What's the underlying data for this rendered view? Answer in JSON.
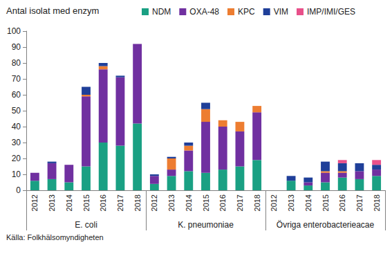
{
  "chart_data": {
    "type": "bar",
    "y_label": "Antal isolat med enzym",
    "source": "Källa: Folkhälsomyndigheten",
    "stacked": true,
    "legend": "top",
    "grid": false,
    "groups": [
      "E. coli",
      "K. pneumoniae",
      "Övriga enterobacterieacae"
    ],
    "categories": [
      "2012",
      "2013",
      "2014",
      "2015",
      "2016",
      "2017",
      "2018",
      "2012",
      "2013",
      "2014",
      "2015",
      "2016",
      "2017",
      "2018",
      "2012",
      "2013",
      "2014",
      "2015",
      "2016",
      "2017",
      "2018"
    ],
    "series": [
      {
        "name": "NDM",
        "color": "#1aa083",
        "values": [
          6,
          7,
          5,
          15,
          30,
          28,
          42,
          4,
          9,
          12,
          11,
          13,
          15,
          19,
          0,
          6,
          3,
          5,
          8,
          7,
          9
        ]
      },
      {
        "name": "OXA-48",
        "color": "#7030a0",
        "values": [
          5,
          10,
          11,
          44,
          46,
          43,
          50,
          5,
          4,
          13,
          32,
          27,
          22,
          30,
          0,
          0,
          2,
          6,
          3,
          5,
          4
        ]
      },
      {
        "name": "KPC",
        "color": "#ed7d31",
        "values": [
          0,
          0,
          0,
          1,
          2,
          0,
          0,
          0,
          7,
          3,
          8,
          4,
          6,
          4,
          0,
          0,
          0,
          1,
          1,
          0,
          0
        ]
      },
      {
        "name": "VIM",
        "color": "#1f3f99",
        "values": [
          0,
          1,
          0,
          5,
          2,
          1,
          0,
          1,
          1,
          2,
          4,
          0,
          0,
          0,
          0,
          3,
          3,
          6,
          5,
          5,
          3
        ]
      },
      {
        "name": "IMP/IMI/GES",
        "color": "#e8508a",
        "values": [
          0,
          0,
          0,
          0,
          0,
          0,
          0,
          0,
          0,
          0,
          0,
          0,
          0,
          0,
          0,
          0,
          0,
          0,
          2,
          0,
          3
        ]
      }
    ],
    "ylim": [
      0,
      100
    ],
    "yticks": [
      0,
      10,
      20,
      30,
      40,
      50,
      60,
      70,
      80,
      90,
      100
    ]
  }
}
